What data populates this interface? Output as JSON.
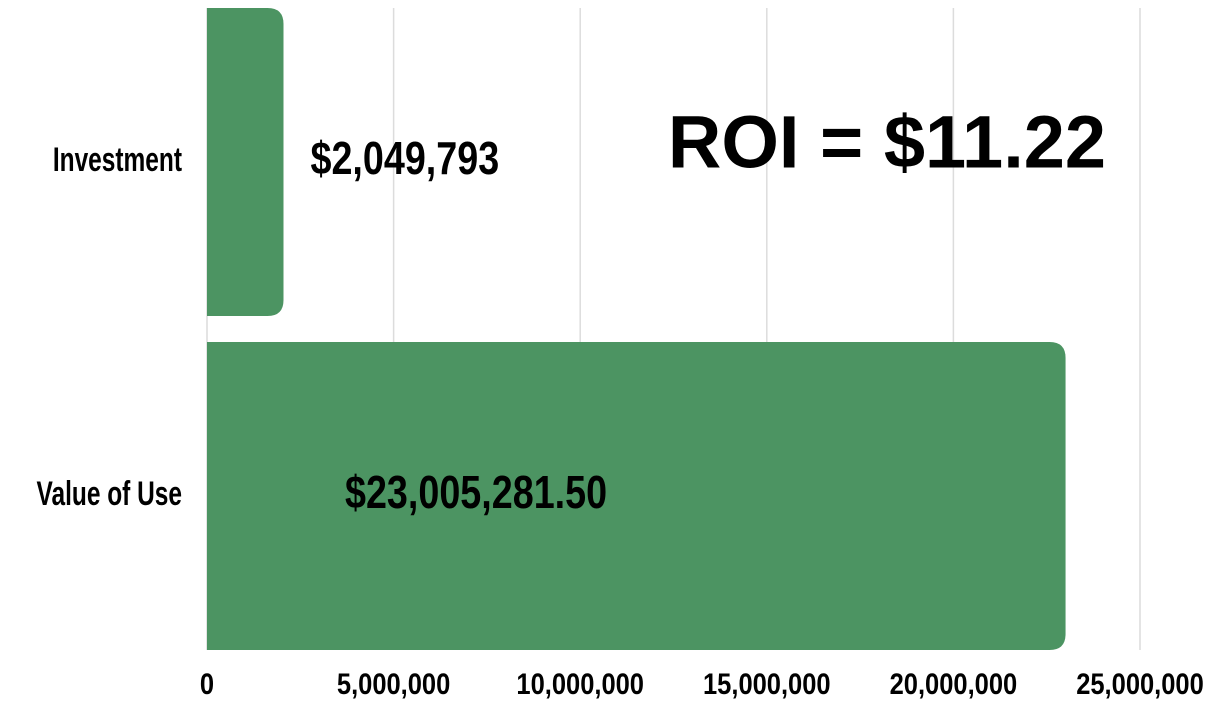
{
  "chart_data": {
    "type": "barh",
    "categories": [
      "Investment",
      "Value of Use"
    ],
    "values": [
      2049793,
      23005281.5
    ],
    "value_labels": [
      "$2,049,793",
      "$23,005,281.50"
    ],
    "color": "#4c9462",
    "annotation": "ROI = $11.22",
    "xlim": [
      0,
      25000000
    ],
    "xticks": [
      0,
      {
        "value": 5000000,
        "label": "5,000,000"
      },
      {
        "value": 10000000,
        "label": "10,000,000"
      },
      {
        "value": 15000000,
        "label": "15,000,000"
      },
      {
        "value": 20000000,
        "label": "20,000,000"
      },
      {
        "value": 25000000,
        "label": "25,000,000"
      }
    ],
    "grid": true
  }
}
